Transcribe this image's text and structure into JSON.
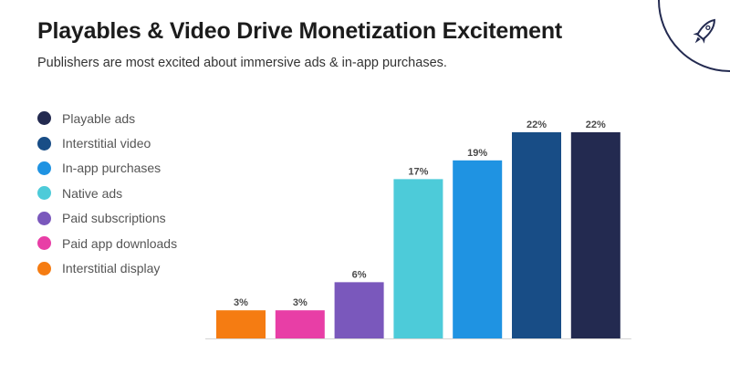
{
  "header": {
    "title": "Playables & Video Drive Monetization Excitement",
    "subtitle": "Publishers are most excited about immersive ads & in-app purchases."
  },
  "logo": {
    "icon": "rocket-icon"
  },
  "legend": {
    "items": [
      {
        "label": "Playable ads",
        "color": "#232a50"
      },
      {
        "label": "Interstitial video",
        "color": "#184d86"
      },
      {
        "label": "In-app purchases",
        "color": "#1f93e2"
      },
      {
        "label": "Native ads",
        "color": "#4dcbd9"
      },
      {
        "label": "Paid subscriptions",
        "color": "#7a58bc"
      },
      {
        "label": "Paid app downloads",
        "color": "#e83ea6"
      },
      {
        "label": "Interstitial display",
        "color": "#f57c12"
      }
    ]
  },
  "chart_data": {
    "type": "bar",
    "title": "Playables & Video Drive Monetization Excitement",
    "subtitle": "Publishers are most excited about immersive ads & in-app purchases.",
    "xlabel": "",
    "ylabel": "",
    "categories": [
      "Interstitial display",
      "Paid app downloads",
      "Paid subscriptions",
      "Native ads",
      "In-app purchases",
      "Interstitial video",
      "Playable ads"
    ],
    "values": [
      3,
      3,
      6,
      17,
      19,
      22,
      22
    ],
    "labels": [
      "3%",
      "3%",
      "6%",
      "17%",
      "19%",
      "22%",
      "22%"
    ],
    "colors": [
      "#f57c12",
      "#e83ea6",
      "#7a58bc",
      "#4dcbd9",
      "#1f93e2",
      "#184d86",
      "#232a50"
    ],
    "ylim": [
      0,
      22
    ],
    "grid": false,
    "legend_position": "left"
  }
}
